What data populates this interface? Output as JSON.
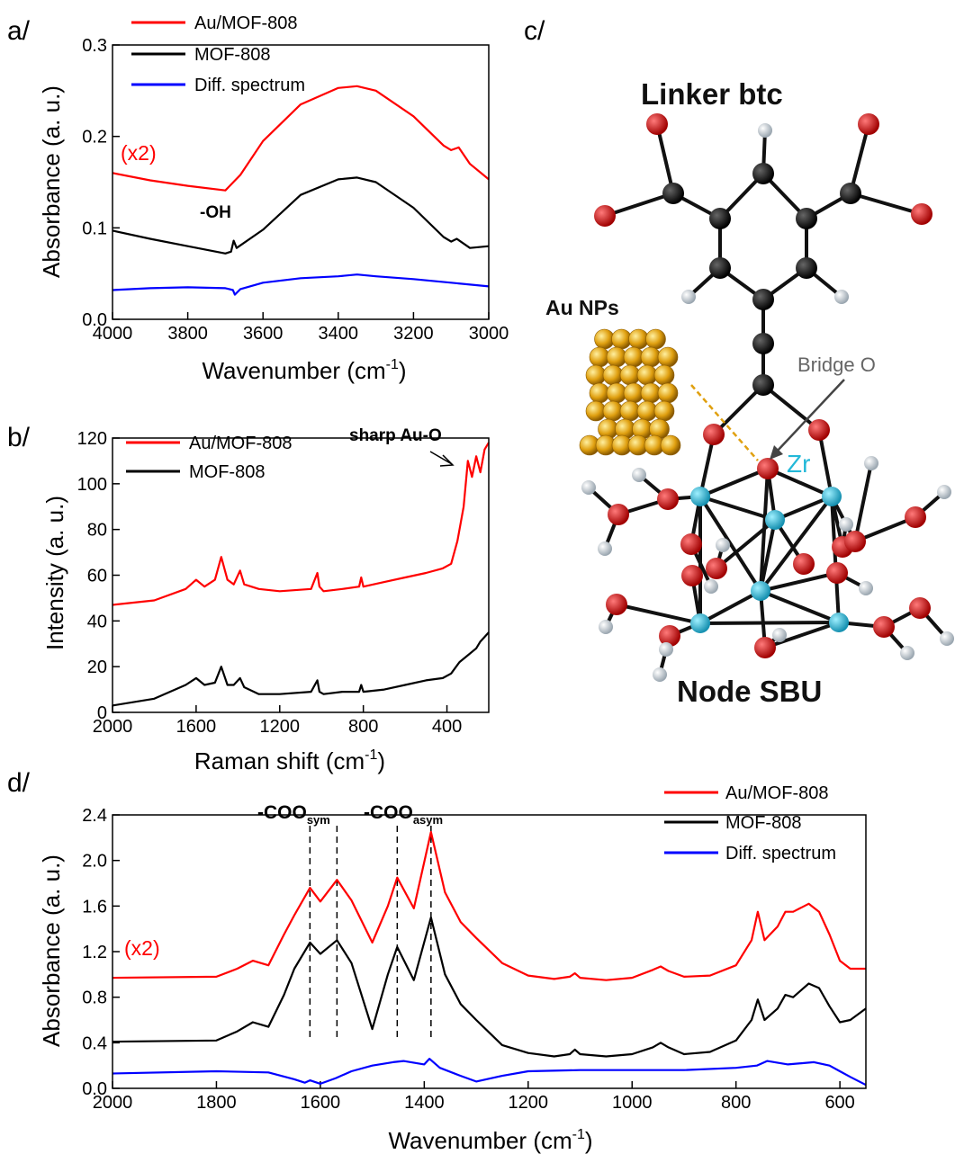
{
  "panels": {
    "a": "a/",
    "b": "b/",
    "c": "c/",
    "d": "d/"
  },
  "colors": {
    "red": "#ff0000",
    "black": "#000000",
    "blue": "#0000ff",
    "oxygen": "#cc0000",
    "zirconium": "#22b8d8",
    "carbon": "#111111",
    "hydrogen": "#dde4ea",
    "gold": "#e0a010"
  },
  "molecule": {
    "linker_label": "Linker btc",
    "au_label": "Au NPs",
    "bridge_label": "Bridge O",
    "zr_label": "Zr",
    "node_label": "Node SBU"
  },
  "chart_data": [
    {
      "id": "a",
      "type": "line",
      "xlabel": "Wavenumber (cm",
      "xlabel_sup": "-1",
      "xlabel_tail": ")",
      "ylabel": "Absorbance (a. u.)",
      "xlim": [
        4000,
        3000
      ],
      "ylim": [
        0.0,
        0.3
      ],
      "xticks": [
        "4000",
        "3800",
        "3600",
        "3400",
        "3200",
        "3000"
      ],
      "yticks": [
        "0.0",
        "0.1",
        "0.2",
        "0.3"
      ],
      "legend": [
        "Au/MOF-808",
        "MOF-808",
        "Diff. spectrum"
      ],
      "annotations": {
        "scale": "(x2)",
        "oh": "-OH"
      },
      "series": [
        {
          "name": "Au/MOF-808",
          "color": "#ff0000",
          "x": [
            4000,
            3900,
            3800,
            3700,
            3660,
            3600,
            3500,
            3400,
            3350,
            3300,
            3200,
            3120,
            3100,
            3080,
            3050,
            3000
          ],
          "y": [
            0.16,
            0.152,
            0.146,
            0.141,
            0.158,
            0.195,
            0.235,
            0.253,
            0.255,
            0.25,
            0.222,
            0.19,
            0.185,
            0.188,
            0.17,
            0.153
          ]
        },
        {
          "name": "MOF-808",
          "color": "#000000",
          "x": [
            4000,
            3900,
            3800,
            3700,
            3685,
            3678,
            3670,
            3600,
            3500,
            3400,
            3350,
            3300,
            3200,
            3120,
            3100,
            3085,
            3050,
            3000
          ],
          "y": [
            0.097,
            0.088,
            0.08,
            0.072,
            0.074,
            0.086,
            0.078,
            0.098,
            0.136,
            0.153,
            0.155,
            0.15,
            0.122,
            0.09,
            0.085,
            0.088,
            0.078,
            0.08
          ]
        },
        {
          "name": "Diff. spectrum",
          "color": "#0000ff",
          "x": [
            4000,
            3900,
            3800,
            3700,
            3680,
            3675,
            3660,
            3600,
            3500,
            3400,
            3350,
            3300,
            3200,
            3100,
            3000
          ],
          "y": [
            0.032,
            0.034,
            0.035,
            0.034,
            0.032,
            0.027,
            0.033,
            0.04,
            0.045,
            0.047,
            0.049,
            0.047,
            0.044,
            0.04,
            0.036
          ]
        }
      ]
    },
    {
      "id": "b",
      "type": "line",
      "xlabel": "Raman shift (cm",
      "xlabel_sup": "-1",
      "xlabel_tail": ")",
      "ylabel": "Intensity (a. u.)",
      "xlim": [
        2000,
        200
      ],
      "ylim": [
        0,
        120
      ],
      "xticks": [
        "2000",
        "1600",
        "1200",
        "800",
        "400"
      ],
      "yticks": [
        "0",
        "20",
        "40",
        "60",
        "80",
        "100",
        "120"
      ],
      "legend": [
        "Au/MOF-808",
        "MOF-808"
      ],
      "annotations": {
        "sharp": "sharp Au-O"
      },
      "series": [
        {
          "name": "Au/MOF-808",
          "color": "#ff0000",
          "x": [
            2000,
            1800,
            1650,
            1600,
            1560,
            1510,
            1480,
            1450,
            1420,
            1390,
            1370,
            1300,
            1200,
            1050,
            1020,
            1010,
            990,
            900,
            820,
            810,
            800,
            700,
            600,
            500,
            420,
            380,
            350,
            320,
            300,
            280,
            260,
            240,
            220,
            200
          ],
          "y": [
            47,
            49,
            54,
            58,
            55,
            58,
            68,
            58,
            56,
            62,
            56,
            54,
            53,
            54,
            61,
            55,
            53,
            54,
            55,
            59,
            55,
            57,
            59,
            61,
            63,
            65,
            75,
            90,
            110,
            103,
            112,
            105,
            115,
            118
          ]
        },
        {
          "name": "MOF-808",
          "color": "#000000",
          "x": [
            2000,
            1800,
            1650,
            1600,
            1560,
            1510,
            1480,
            1450,
            1420,
            1390,
            1370,
            1300,
            1200,
            1050,
            1020,
            1010,
            990,
            900,
            820,
            810,
            800,
            700,
            600,
            500,
            420,
            380,
            340,
            300,
            260,
            240,
            220,
            200
          ],
          "y": [
            3,
            6,
            12,
            15,
            12,
            13,
            20,
            12,
            12,
            15,
            11,
            8,
            8,
            9,
            14,
            9,
            8,
            9,
            9,
            12,
            9,
            10,
            12,
            14,
            15,
            17,
            22,
            25,
            28,
            31,
            33,
            35
          ]
        }
      ]
    },
    {
      "id": "d",
      "type": "line",
      "xlabel": "Wavenumber (cm",
      "xlabel_sup": "-1",
      "xlabel_tail": ")",
      "ylabel": "Absorbance (a. u.)",
      "xlim": [
        2000,
        550
      ],
      "ylim": [
        0.0,
        2.4
      ],
      "xticks": [
        "2000",
        "1800",
        "1600",
        "1400",
        "1200",
        "1000",
        "800",
        "600"
      ],
      "yticks": [
        "0.0",
        "0.4",
        "0.8",
        "1.2",
        "1.6",
        "2.0",
        "2.4"
      ],
      "legend": [
        "Au/MOF-808",
        "MOF-808",
        "Diff. spectrum"
      ],
      "annotations": {
        "scale": "(x2)",
        "sym_main": "-COO",
        "sym_sub": "sym",
        "asym_main": "-COO",
        "asym_sub": "asym"
      },
      "dashed_lines": [
        1620,
        1568,
        1452,
        1387
      ],
      "series": [
        {
          "name": "Au/MOF-808",
          "color": "#ff0000",
          "x": [
            2000,
            1800,
            1760,
            1730,
            1700,
            1670,
            1650,
            1620,
            1600,
            1568,
            1540,
            1500,
            1470,
            1452,
            1420,
            1387,
            1360,
            1330,
            1300,
            1250,
            1200,
            1150,
            1120,
            1110,
            1100,
            1050,
            1000,
            960,
            945,
            930,
            900,
            850,
            800,
            770,
            758,
            745,
            720,
            705,
            690,
            660,
            640,
            620,
            600,
            580,
            550
          ],
          "y": [
            0.97,
            0.98,
            1.05,
            1.12,
            1.08,
            1.35,
            1.52,
            1.76,
            1.64,
            1.83,
            1.65,
            1.28,
            1.6,
            1.85,
            1.58,
            2.25,
            1.72,
            1.46,
            1.32,
            1.1,
            0.99,
            0.96,
            0.98,
            1.01,
            0.97,
            0.95,
            0.97,
            1.04,
            1.07,
            1.03,
            0.98,
            0.99,
            1.08,
            1.3,
            1.55,
            1.3,
            1.42,
            1.55,
            1.55,
            1.62,
            1.55,
            1.35,
            1.12,
            1.05,
            1.05
          ]
        },
        {
          "name": "MOF-808",
          "color": "#000000",
          "x": [
            2000,
            1800,
            1760,
            1730,
            1700,
            1670,
            1650,
            1620,
            1600,
            1568,
            1540,
            1500,
            1470,
            1452,
            1420,
            1387,
            1360,
            1330,
            1300,
            1250,
            1200,
            1150,
            1120,
            1110,
            1100,
            1050,
            1000,
            960,
            945,
            930,
            900,
            850,
            800,
            770,
            758,
            745,
            720,
            705,
            690,
            660,
            640,
            620,
            600,
            580,
            550
          ],
          "y": [
            0.41,
            0.42,
            0.5,
            0.58,
            0.54,
            0.82,
            1.05,
            1.28,
            1.18,
            1.3,
            1.1,
            0.52,
            1.0,
            1.24,
            0.95,
            1.5,
            1.0,
            0.74,
            0.6,
            0.38,
            0.31,
            0.28,
            0.3,
            0.34,
            0.3,
            0.28,
            0.3,
            0.36,
            0.4,
            0.36,
            0.3,
            0.32,
            0.42,
            0.6,
            0.78,
            0.6,
            0.7,
            0.82,
            0.8,
            0.92,
            0.88,
            0.72,
            0.58,
            0.6,
            0.7
          ]
        },
        {
          "name": "Diff. spectrum",
          "color": "#0000ff",
          "x": [
            2000,
            1800,
            1700,
            1650,
            1630,
            1620,
            1600,
            1570,
            1540,
            1500,
            1460,
            1440,
            1400,
            1390,
            1370,
            1330,
            1300,
            1250,
            1200,
            1100,
            1000,
            900,
            800,
            760,
            740,
            700,
            650,
            620,
            600,
            580,
            550
          ],
          "y": [
            0.13,
            0.15,
            0.14,
            0.08,
            0.05,
            0.07,
            0.04,
            0.09,
            0.15,
            0.2,
            0.23,
            0.24,
            0.21,
            0.26,
            0.18,
            0.11,
            0.06,
            0.11,
            0.15,
            0.16,
            0.16,
            0.16,
            0.18,
            0.2,
            0.24,
            0.21,
            0.23,
            0.2,
            0.15,
            0.1,
            0.03
          ]
        }
      ]
    }
  ]
}
